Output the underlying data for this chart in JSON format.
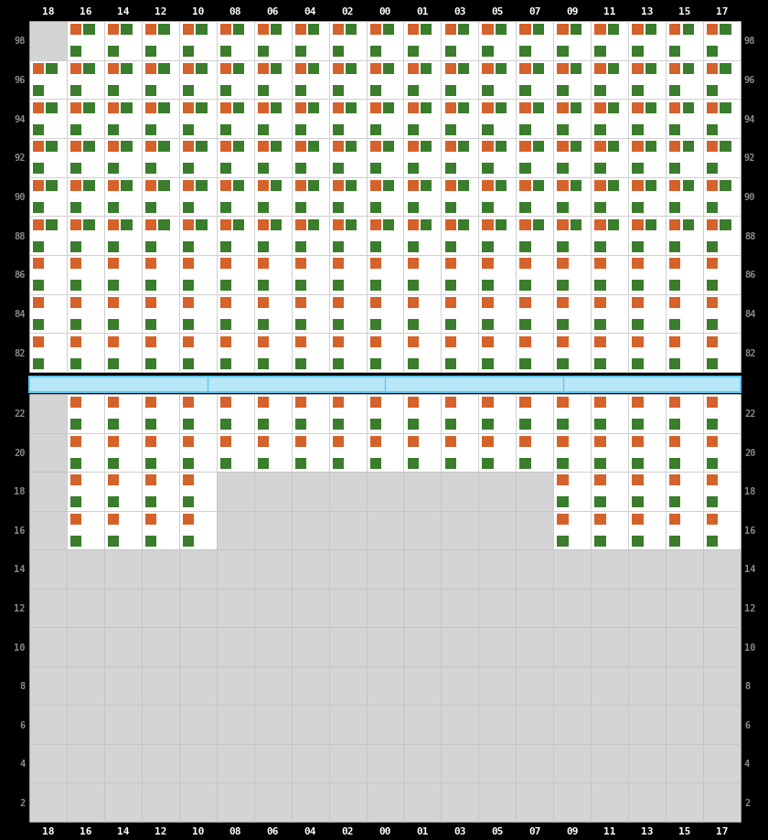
{
  "columns": [
    "18",
    "16",
    "14",
    "12",
    "10",
    "08",
    "06",
    "04",
    "02",
    "00",
    "01",
    "03",
    "05",
    "07",
    "09",
    "11",
    "13",
    "15",
    "17"
  ],
  "rows_above": [
    98,
    96,
    94,
    92,
    90,
    88,
    86,
    84,
    82
  ],
  "rows_below": [
    22,
    20,
    18,
    16,
    14,
    12,
    10,
    8,
    6,
    4,
    2
  ],
  "bg_color": "#000000",
  "cell_bg_filled": "#ffffff",
  "cell_bg_empty": "#d4d4d4",
  "orange": "#d4622a",
  "green": "#3a7d2c",
  "sep_color_fill": "#b8e8f8",
  "sep_color_edge": "#60c8f0",
  "label_color": "#888888",
  "grid_color": "#cccccc",
  "col_label_color": "#ffffff",
  "above_filled": {
    "98": [
      "16",
      "14",
      "12",
      "10",
      "08",
      "06",
      "04",
      "02",
      "00",
      "01",
      "03",
      "05",
      "07",
      "09",
      "11",
      "13",
      "15",
      "17"
    ],
    "96": [
      "18",
      "16",
      "14",
      "12",
      "10",
      "08",
      "06",
      "04",
      "02",
      "00",
      "01",
      "03",
      "05",
      "07",
      "09",
      "11",
      "13",
      "15",
      "17"
    ],
    "94": [
      "18",
      "16",
      "14",
      "12",
      "10",
      "08",
      "06",
      "04",
      "02",
      "00",
      "01",
      "03",
      "05",
      "07",
      "09",
      "11",
      "13",
      "15",
      "17"
    ],
    "92": [
      "18",
      "16",
      "14",
      "12",
      "10",
      "08",
      "06",
      "04",
      "02",
      "00",
      "01",
      "03",
      "05",
      "07",
      "09",
      "11",
      "13",
      "15",
      "17"
    ],
    "90": [
      "18",
      "16",
      "14",
      "12",
      "10",
      "08",
      "06",
      "04",
      "02",
      "00",
      "01",
      "03",
      "05",
      "07",
      "09",
      "11",
      "13",
      "15",
      "17"
    ],
    "88": [
      "18",
      "16",
      "14",
      "12",
      "10",
      "08",
      "06",
      "04",
      "02",
      "00",
      "01",
      "03",
      "05",
      "07",
      "09",
      "11",
      "13",
      "15",
      "17"
    ],
    "86": [
      "18",
      "16",
      "14",
      "12",
      "10",
      "08",
      "06",
      "04",
      "02",
      "00",
      "01",
      "03",
      "05",
      "07",
      "09",
      "11",
      "13",
      "15",
      "17"
    ],
    "84": [
      "18",
      "16",
      "14",
      "12",
      "10",
      "08",
      "06",
      "04",
      "02",
      "00",
      "01",
      "03",
      "05",
      "07",
      "09",
      "11",
      "13",
      "15",
      "17"
    ],
    "82": [
      "18",
      "16",
      "14",
      "12",
      "10",
      "08",
      "06",
      "04",
      "02",
      "00",
      "01",
      "03",
      "05",
      "07",
      "09",
      "11",
      "13",
      "15",
      "17"
    ]
  },
  "below_filled": {
    "22": [
      "16",
      "14",
      "12",
      "10",
      "08",
      "06",
      "04",
      "02",
      "00",
      "01",
      "03",
      "05",
      "07",
      "09",
      "11",
      "13",
      "15",
      "17"
    ],
    "20": [
      "16",
      "14",
      "12",
      "10",
      "08",
      "06",
      "04",
      "02",
      "00",
      "01",
      "03",
      "05",
      "07",
      "09",
      "11",
      "13",
      "15",
      "17"
    ],
    "18": [
      "16",
      "14",
      "12",
      "10",
      "09",
      "11",
      "13",
      "15",
      "17"
    ],
    "16": [
      "16",
      "14",
      "12",
      "10",
      "09",
      "11",
      "13",
      "15",
      "17"
    ],
    "14": [],
    "12": [],
    "10": [],
    "8": [],
    "6": [],
    "4": [],
    "2": []
  },
  "row_pattern": {
    "98": "three_right",
    "96": "three_right",
    "94": "three_right",
    "92": "three_right",
    "90": "three_right",
    "88": "three_right",
    "86": "two_left",
    "84": "two_left",
    "82": "two_left",
    "22": "two_left",
    "20": "two_left",
    "18": "two_left",
    "16": "two_left"
  }
}
